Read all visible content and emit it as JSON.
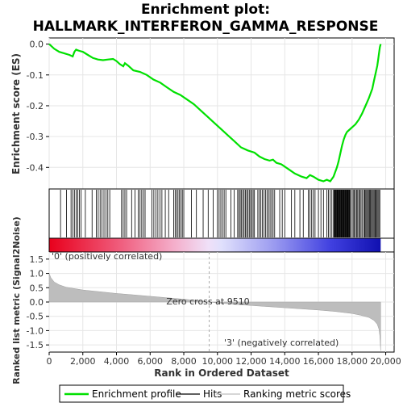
{
  "chart_data": {
    "type": "line",
    "title_line1": "Enrichment plot:",
    "title_line2": "HALLMARK_INTERFERON_GAMMA_RESPONSE",
    "xlabel": "Rank in Ordered Dataset",
    "ylabel_top": "Enrichment score (ES)",
    "ylabel_bottom": "Ranked list metric (Signal2Noise)",
    "xlim": [
      0,
      20500
    ],
    "es_ylim": [
      -0.47,
      0.02
    ],
    "metric_ylim": [
      -1.75,
      1.75
    ],
    "x_ticks": [
      0,
      2000,
      4000,
      6000,
      8000,
      10000,
      12000,
      14000,
      16000,
      18000,
      20000
    ],
    "x_tick_labels": [
      "0",
      "2,000",
      "4,000",
      "6,000",
      "8,000",
      "10,000",
      "12,000",
      "14,000",
      "16,000",
      "18,000",
      "20,000"
    ],
    "es_y_ticks": [
      0.0,
      -0.1,
      -0.2,
      -0.3,
      -0.4
    ],
    "es_y_tick_labels": [
      "0.0",
      "-0.1",
      "-0.2",
      "-0.3",
      "-0.4"
    ],
    "metric_y_ticks": [
      1.5,
      1.0,
      0.5,
      0.0,
      -0.5,
      -1.0,
      -1.5
    ],
    "metric_y_tick_labels": [
      "1.5",
      "1.0",
      "0.5",
      "0.0",
      "-0.5",
      "-1.0",
      "-1.5"
    ],
    "enrichment_profile": {
      "x": [
        0,
        300,
        600,
        900,
        1200,
        1400,
        1500,
        1600,
        1700,
        1800,
        2000,
        2300,
        2600,
        2900,
        3200,
        3500,
        3800,
        4000,
        4200,
        4400,
        4500,
        4700,
        5000,
        5400,
        5800,
        6200,
        6600,
        7000,
        7400,
        7800,
        8200,
        8600,
        9000,
        9400,
        9800,
        10200,
        10600,
        11000,
        11400,
        11800,
        12200,
        12500,
        12800,
        13100,
        13300,
        13500,
        13800,
        14200,
        14600,
        15000,
        15300,
        15500,
        15700,
        16000,
        16300,
        16500,
        16700,
        16900,
        17000,
        17100,
        17200,
        17300,
        17400,
        17500,
        17600,
        17700,
        17800,
        18000,
        18200,
        18400,
        18600,
        18800,
        19000,
        19200,
        19300,
        19400,
        19500,
        19550,
        19600,
        19650,
        19700
      ],
      "y": [
        0.0,
        -0.015,
        -0.025,
        -0.03,
        -0.035,
        -0.04,
        -0.025,
        -0.018,
        -0.02,
        -0.022,
        -0.025,
        -0.035,
        -0.045,
        -0.05,
        -0.052,
        -0.05,
        -0.048,
        -0.055,
        -0.065,
        -0.072,
        -0.062,
        -0.07,
        -0.085,
        -0.09,
        -0.1,
        -0.115,
        -0.125,
        -0.14,
        -0.155,
        -0.165,
        -0.18,
        -0.195,
        -0.215,
        -0.235,
        -0.255,
        -0.275,
        -0.295,
        -0.315,
        -0.335,
        -0.345,
        -0.352,
        -0.365,
        -0.373,
        -0.378,
        -0.375,
        -0.385,
        -0.39,
        -0.405,
        -0.42,
        -0.43,
        -0.435,
        -0.425,
        -0.43,
        -0.44,
        -0.445,
        -0.44,
        -0.445,
        -0.43,
        -0.415,
        -0.4,
        -0.38,
        -0.355,
        -0.33,
        -0.31,
        -0.295,
        -0.285,
        -0.28,
        -0.27,
        -0.26,
        -0.245,
        -0.225,
        -0.2,
        -0.175,
        -0.145,
        -0.12,
        -0.095,
        -0.07,
        -0.05,
        -0.03,
        -0.01,
        0.0
      ]
    },
    "hits": [
      {
        "from": 650,
        "to": 700,
        "n": 1
      },
      {
        "from": 1000,
        "to": 1050,
        "n": 1
      },
      {
        "from": 1300,
        "to": 1900,
        "n": 7
      },
      {
        "from": 2100,
        "to": 2200,
        "n": 1
      },
      {
        "from": 2500,
        "to": 2600,
        "n": 1
      },
      {
        "from": 2800,
        "to": 3600,
        "n": 8
      },
      {
        "from": 4300,
        "to": 4600,
        "n": 4
      },
      {
        "from": 4900,
        "to": 5100,
        "n": 2
      },
      {
        "from": 5300,
        "to": 5700,
        "n": 5
      },
      {
        "from": 6100,
        "to": 6700,
        "n": 6
      },
      {
        "from": 6900,
        "to": 7100,
        "n": 2
      },
      {
        "from": 7400,
        "to": 8000,
        "n": 8
      },
      {
        "from": 8400,
        "to": 8500,
        "n": 1
      },
      {
        "from": 8700,
        "to": 8800,
        "n": 1
      },
      {
        "from": 9100,
        "to": 9200,
        "n": 1
      },
      {
        "from": 9400,
        "to": 9500,
        "n": 1
      },
      {
        "from": 9700,
        "to": 9800,
        "n": 1
      },
      {
        "from": 10000,
        "to": 10500,
        "n": 6
      },
      {
        "from": 10800,
        "to": 11000,
        "n": 2
      },
      {
        "from": 11200,
        "to": 12200,
        "n": 14
      },
      {
        "from": 12400,
        "to": 13400,
        "n": 12
      },
      {
        "from": 13700,
        "to": 14000,
        "n": 3
      },
      {
        "from": 14400,
        "to": 14600,
        "n": 2
      },
      {
        "from": 14900,
        "to": 15100,
        "n": 2
      },
      {
        "from": 15400,
        "to": 15800,
        "n": 5
      },
      {
        "from": 16000,
        "to": 16300,
        "n": 3
      },
      {
        "from": 16500,
        "to": 16800,
        "n": 4
      },
      {
        "from": 16900,
        "to": 17900,
        "n": 30
      },
      {
        "from": 18000,
        "to": 18600,
        "n": 10
      },
      {
        "from": 18700,
        "to": 19650,
        "n": 18
      }
    ],
    "ranked_metric": {
      "x": [
        0,
        100,
        300,
        600,
        1000,
        2000,
        3000,
        4000,
        5000,
        6000,
        7000,
        8000,
        9000,
        9510,
        10000,
        11000,
        12000,
        13000,
        14000,
        15000,
        16000,
        17000,
        18000,
        18500,
        19000,
        19300,
        19500,
        19600,
        19650,
        19700
      ],
      "y": [
        1.0,
        0.85,
        0.7,
        0.6,
        0.52,
        0.42,
        0.36,
        0.3,
        0.25,
        0.2,
        0.15,
        0.1,
        0.04,
        0.0,
        -0.03,
        -0.08,
        -0.12,
        -0.16,
        -0.2,
        -0.24,
        -0.28,
        -0.33,
        -0.4,
        -0.46,
        -0.54,
        -0.64,
        -0.78,
        -0.95,
        -1.2,
        -1.7
      ]
    },
    "zero_cross": 9510,
    "zero_cross_label": "Zero cross at 9510",
    "pos_label": "'0' (positively correlated)",
    "neg_label": "'3' (negatively correlated)",
    "colors": {
      "profile": "#00e000",
      "hits": "#000000",
      "metric_fill": "#bdbdbd",
      "pos_label": "#e02020",
      "neg_label": "#2020c0",
      "zero_line": "#aaaaaa"
    },
    "legend": [
      {
        "label": "Enrichment profile",
        "kind": "profile"
      },
      {
        "label": "Hits",
        "kind": "hits"
      },
      {
        "label": "Ranking metric scores",
        "kind": "metric"
      }
    ]
  }
}
